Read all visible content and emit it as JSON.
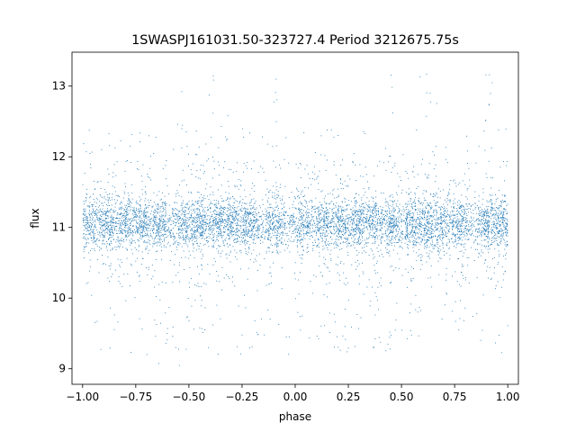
{
  "chart_data": {
    "type": "scatter",
    "title": "1SWASPJ161031.50-323727.4 Period 3212675.75s",
    "xlabel": "phase",
    "ylabel": "flux",
    "xlim": [
      -1.05,
      1.05
    ],
    "ylim": [
      8.78,
      13.48
    ],
    "grid": false,
    "legend": "none",
    "marker_color": "#1f77b4",
    "xticks": [
      -1.0,
      -0.75,
      -0.5,
      -0.25,
      0.0,
      0.25,
      0.5,
      0.75,
      1.0
    ],
    "xtick_labels": [
      "−1.00",
      "−0.75",
      "−0.50",
      "−0.25",
      "0.00",
      "0.25",
      "0.50",
      "0.75",
      "1.00"
    ],
    "yticks": [
      9,
      10,
      11,
      12,
      13
    ],
    "ytick_labels": [
      "9",
      "10",
      "11",
      "12",
      "13"
    ],
    "series": [
      {
        "x_range": [
          -1.0,
          1.0
        ],
        "y_center": 11.05,
        "y_core_spread": 0.18,
        "observed_y_range": [
          9.0,
          13.25
        ],
        "stripe_phases": [
          -0.97,
          -0.88,
          -0.8,
          -0.72,
          -0.63,
          -0.53,
          -0.45,
          -0.37,
          -0.3,
          -0.22,
          -0.09,
          0.03,
          0.13,
          0.22,
          0.3,
          0.38,
          0.46,
          0.55,
          0.62,
          0.69,
          0.78,
          0.9,
          0.97
        ],
        "flare_phases": [
          -0.55,
          -0.4,
          -0.33,
          -0.09,
          0.45,
          0.6,
          0.65,
          0.91
        ],
        "dip_phases": [
          -0.62,
          -0.57,
          0.38,
          0.46
        ]
      }
    ]
  }
}
